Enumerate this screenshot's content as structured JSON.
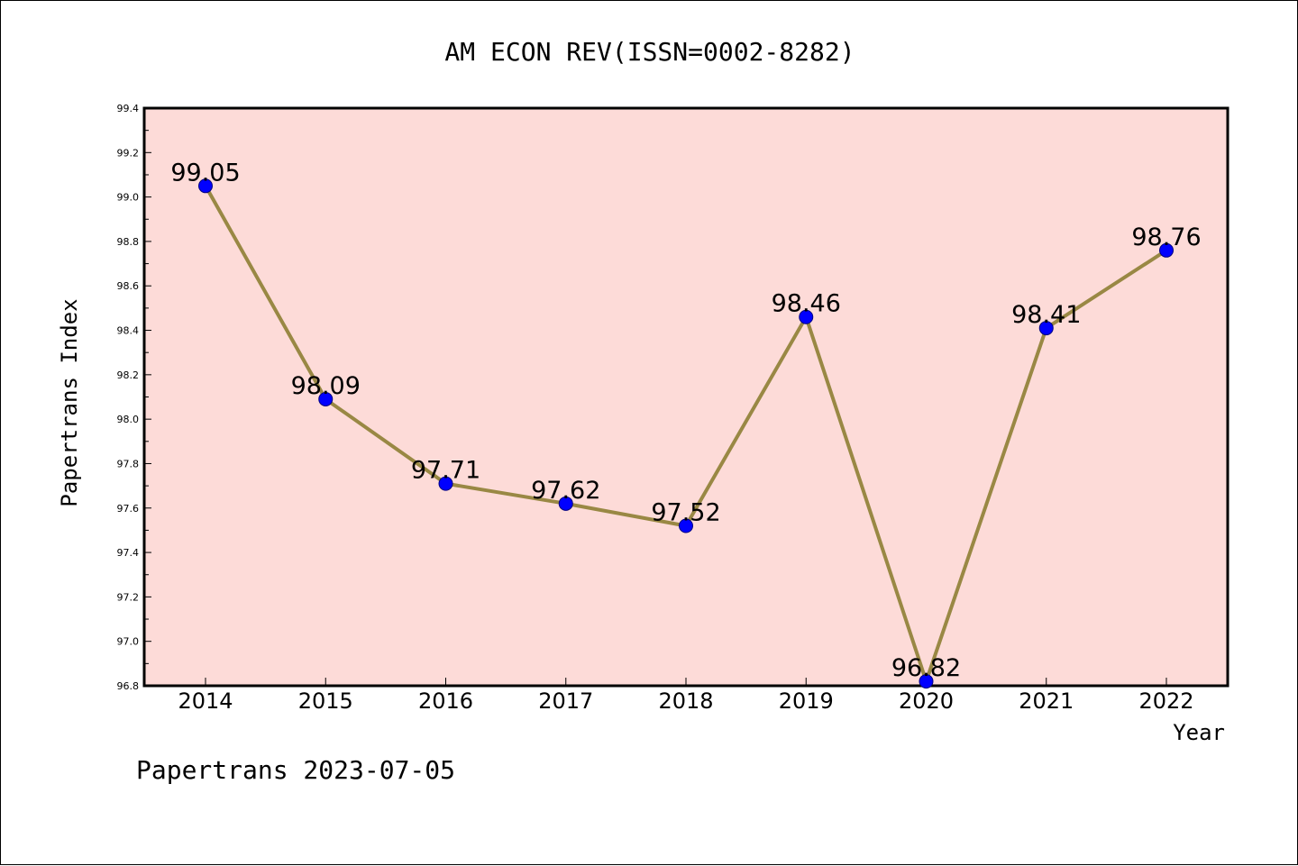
{
  "chart_data": {
    "type": "line",
    "title": "AM ECON REV(ISSN=0002-8282)",
    "xlabel": "Year",
    "ylabel": "Papertrans Index",
    "categories": [
      "2014",
      "2015",
      "2016",
      "2017",
      "2018",
      "2019",
      "2020",
      "2021",
      "2022"
    ],
    "values": [
      99.05,
      98.09,
      97.71,
      97.62,
      97.52,
      98.46,
      96.82,
      98.41,
      98.76
    ],
    "data_labels": [
      "99.05",
      "98.09",
      "97.71",
      "97.62",
      "97.52",
      "98.46",
      "96.82",
      "98.41",
      "98.76"
    ],
    "ylim": [
      96.8,
      99.4
    ],
    "yticks": [
      "96.8",
      "97.0",
      "97.2",
      "97.4",
      "97.6",
      "97.8",
      "98.0",
      "98.2",
      "98.4",
      "98.6",
      "98.8",
      "99.0",
      "99.2",
      "99.4"
    ],
    "grid": false,
    "colors": {
      "plot_background": "#fddbd8",
      "line": "#998844",
      "marker": "#0000ff",
      "marker_edge": "#000080"
    }
  },
  "footer": "Papertrans 2023-07-05"
}
